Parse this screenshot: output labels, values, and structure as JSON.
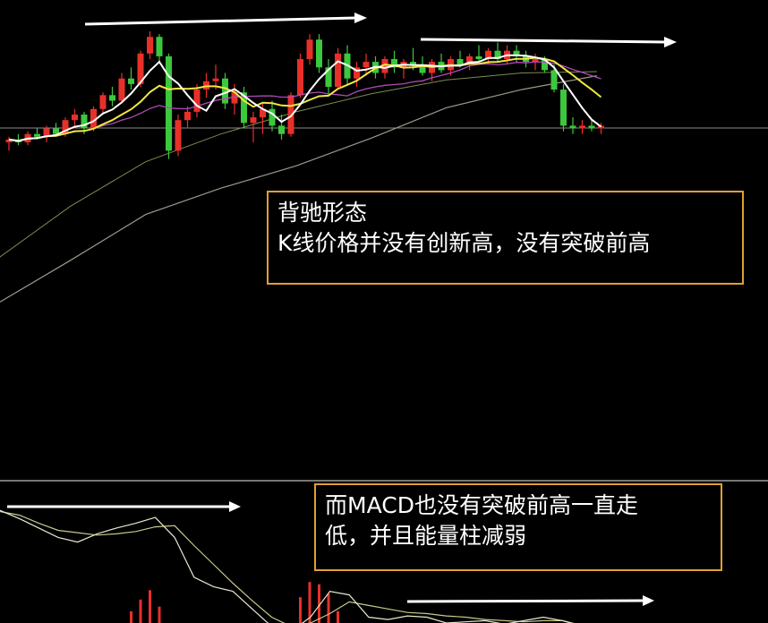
{
  "annotations": {
    "price_note_title": "背驰形态",
    "price_note_body": "K线价格并没有创新高，没有突破前高",
    "macd_note_line1": "而MACD也没有突破前高一直走",
    "macd_note_line2": "低，并且能量柱减弱"
  },
  "colors": {
    "background": "#000000",
    "up_candle": "#e8302a",
    "down_candle": "#3cc83c",
    "ma_short": "#ffffff",
    "ma_mid": "#f2e640",
    "ma_long1": "#b04ab8",
    "ma_long2": "#7c8c4c",
    "ma_long3": "#9a9a8a",
    "dif": "#e8e8d0",
    "dea": "#c8c88a",
    "macd_hist": "#e8302a",
    "note_border": "#e0a030",
    "arrow": "#ffffff"
  },
  "chart_data": [
    {
      "type": "candlestick",
      "panel": "price",
      "candles_ohlc": [
        [
          20,
          24,
          14,
          22
        ],
        [
          22,
          26,
          18,
          20
        ],
        [
          20,
          28,
          18,
          26
        ],
        [
          26,
          30,
          22,
          24
        ],
        [
          24,
          32,
          20,
          30
        ],
        [
          30,
          34,
          24,
          26
        ],
        [
          26,
          38,
          24,
          36
        ],
        [
          36,
          44,
          30,
          40
        ],
        [
          40,
          42,
          26,
          30
        ],
        [
          30,
          46,
          28,
          44
        ],
        [
          44,
          56,
          40,
          54
        ],
        [
          54,
          60,
          46,
          50
        ],
        [
          50,
          70,
          48,
          66
        ],
        [
          66,
          74,
          58,
          62
        ],
        [
          62,
          86,
          60,
          84
        ],
        [
          84,
          100,
          80,
          96
        ],
        [
          96,
          98,
          78,
          82
        ],
        [
          82,
          84,
          8,
          14
        ],
        [
          14,
          40,
          10,
          36
        ],
        [
          36,
          46,
          30,
          42
        ],
        [
          42,
          62,
          38,
          58
        ],
        [
          58,
          70,
          52,
          64
        ],
        [
          64,
          76,
          58,
          66
        ],
        [
          66,
          70,
          44,
          48
        ],
        [
          48,
          62,
          40,
          56
        ],
        [
          56,
          60,
          30,
          34
        ],
        [
          34,
          42,
          20,
          38
        ],
        [
          38,
          48,
          26,
          44
        ],
        [
          44,
          50,
          28,
          32
        ],
        [
          32,
          40,
          22,
          26
        ],
        [
          26,
          56,
          24,
          54
        ],
        [
          54,
          84,
          52,
          80
        ],
        [
          80,
          98,
          76,
          94
        ],
        [
          94,
          98,
          70,
          74
        ],
        [
          74,
          80,
          54,
          60
        ],
        [
          60,
          88,
          58,
          84
        ],
        [
          84,
          90,
          62,
          66
        ],
        [
          66,
          78,
          60,
          74
        ],
        [
          74,
          84,
          68,
          78
        ],
        [
          78,
          82,
          66,
          70
        ],
        [
          70,
          82,
          66,
          80
        ],
        [
          80,
          86,
          70,
          74
        ],
        [
          74,
          80,
          66,
          78
        ],
        [
          78,
          88,
          72,
          76
        ],
        [
          76,
          82,
          68,
          70
        ],
        [
          70,
          80,
          64,
          78
        ],
        [
          78,
          84,
          70,
          72
        ],
        [
          72,
          82,
          68,
          80
        ],
        [
          80,
          86,
          74,
          76
        ],
        [
          76,
          84,
          72,
          82
        ],
        [
          82,
          90,
          78,
          80
        ],
        [
          80,
          88,
          76,
          86
        ],
        [
          86,
          92,
          78,
          80
        ],
        [
          80,
          90,
          76,
          86
        ],
        [
          86,
          90,
          78,
          82
        ],
        [
          82,
          86,
          74,
          78
        ],
        [
          78,
          84,
          72,
          80
        ],
        [
          80,
          82,
          70,
          72
        ],
        [
          72,
          76,
          56,
          58
        ],
        [
          58,
          62,
          28,
          32
        ],
        [
          32,
          38,
          26,
          30
        ],
        [
          30,
          36,
          26,
          32
        ],
        [
          32,
          36,
          28,
          30
        ],
        [
          30,
          34,
          26,
          32
        ]
      ],
      "long_ma_1": [
        -65,
        -26,
        6,
        26,
        42,
        55,
        65,
        70,
        71
      ],
      "long_ma_2": [
        -97,
        -65,
        -32,
        -13,
        3,
        23,
        45,
        58,
        68
      ],
      "reference_level": 30
    },
    {
      "type": "line",
      "panel": "macd",
      "dif": [
        96,
        89,
        81,
        73,
        69,
        76,
        81,
        85,
        90,
        73,
        39,
        31,
        27,
        12,
        -3,
        -7,
        5,
        27,
        24,
        5,
        3,
        6,
        5,
        0,
        1,
        2,
        -1,
        2,
        5,
        2,
        -3,
        -11
      ],
      "dea": [
        95,
        92,
        85,
        79,
        77,
        75,
        76,
        78,
        82,
        83,
        66,
        50,
        34,
        19,
        5,
        -3,
        0,
        8,
        18,
        15,
        12,
        9,
        8,
        6,
        5,
        3,
        2,
        1,
        2,
        2,
        -2,
        -7
      ],
      "histogram": [
        {
          "index": 13,
          "value": 10
        },
        {
          "index": 14,
          "value": 20
        },
        {
          "index": 15,
          "value": 28
        },
        {
          "index": 16,
          "value": 14
        },
        {
          "index": 31,
          "value": 22
        },
        {
          "index": 32,
          "value": 35
        },
        {
          "index": 33,
          "value": 33
        },
        {
          "index": 34,
          "value": 25
        },
        {
          "index": 35,
          "value": 10
        }
      ]
    }
  ]
}
